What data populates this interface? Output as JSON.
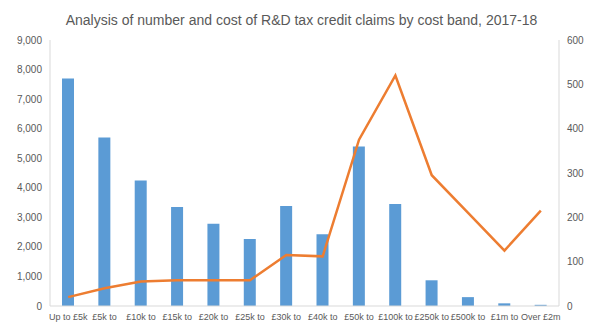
{
  "chart_data": {
    "type": "bar",
    "title": "Analysis of number and cost of R&D tax credit claims by cost band, 2017-18",
    "categories": [
      "Up to £5k",
      "£5k to",
      "£10k to",
      "£15k to",
      "£20k to",
      "£25k to",
      "£30k to",
      "£40k to",
      "£50k to",
      "£100k to",
      "£250k to",
      "£500k to",
      "£1m to",
      "Over £2m"
    ],
    "series": [
      {
        "type": "bar",
        "color": "#5b9bd5",
        "values": [
          7700,
          5700,
          4250,
          3350,
          2780,
          2270,
          3380,
          2430,
          5400,
          3450,
          870,
          300,
          90,
          40
        ]
      },
      {
        "type": "line",
        "axis": "y2",
        "color": "#ed7d31",
        "values": [
          20,
          40,
          55,
          58,
          58,
          58,
          115,
          112,
          375,
          520,
          295,
          210,
          125,
          215
        ]
      }
    ],
    "ylim": [
      0,
      9000
    ],
    "yticks": [
      0,
      {
        "value": 1000,
        "label": "1,000"
      },
      {
        "value": 2000,
        "label": "2,000"
      },
      {
        "value": 3000,
        "label": "3,000"
      },
      {
        "value": 4000,
        "label": "4,000"
      },
      {
        "value": 5000,
        "label": "5,000"
      },
      {
        "value": 6000,
        "label": "6,000"
      },
      {
        "value": 7000,
        "label": "7,000"
      },
      {
        "value": 8000,
        "label": "8,000"
      },
      {
        "value": 9000,
        "label": "9,000"
      }
    ],
    "y2lim": [
      0,
      600
    ],
    "y2ticks": [
      0,
      100,
      200,
      300,
      400,
      500,
      600
    ],
    "grid": false
  }
}
